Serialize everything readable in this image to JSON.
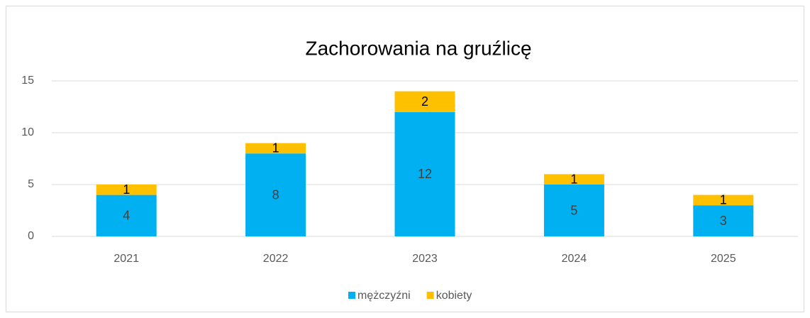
{
  "chart_data": {
    "type": "bar",
    "stacked": true,
    "title": "Zachorowania na gruźlicę",
    "categories": [
      "2021",
      "2022",
      "2023",
      "2024",
      "2025"
    ],
    "series": [
      {
        "name": "mężczyźni",
        "color": "#00b0f0",
        "values": [
          4,
          8,
          12,
          5,
          3
        ]
      },
      {
        "name": "kobiety",
        "color": "#ffc000",
        "values": [
          1,
          1,
          2,
          1,
          1
        ]
      }
    ],
    "ylim": [
      0,
      15
    ],
    "yticks": [
      0,
      5,
      10,
      15
    ],
    "grid": true,
    "legend": "bottom"
  }
}
